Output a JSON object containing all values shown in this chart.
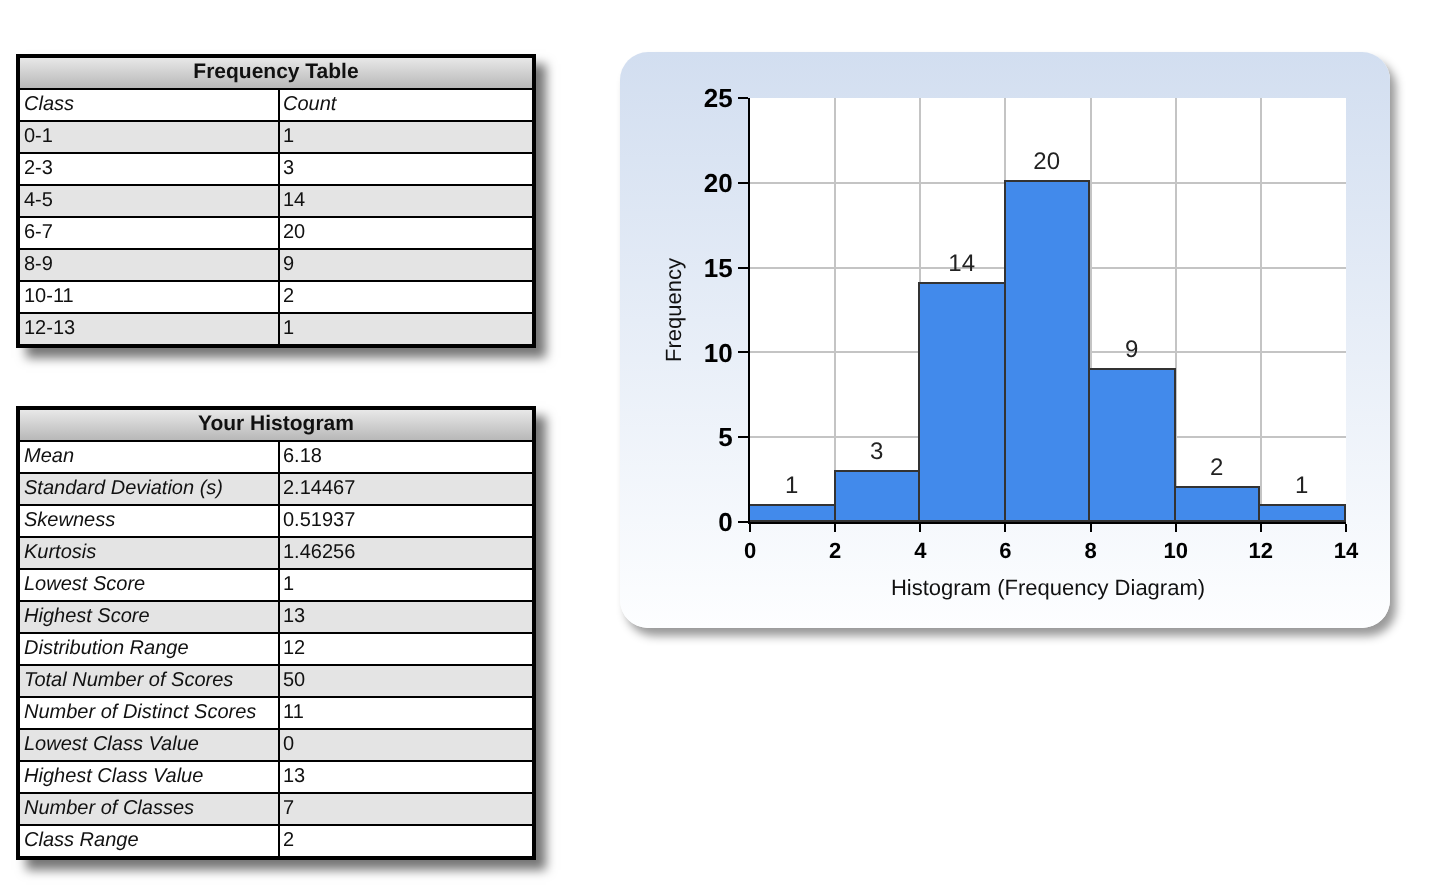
{
  "chart_data": [
    {
      "type": "other",
      "title": "Frequency Table",
      "xlabel": "Class",
      "ylabel": "Count",
      "categories": [
        "0-1",
        "2-3",
        "4-5",
        "6-7",
        "8-9",
        "10-11",
        "12-13"
      ],
      "values": [
        1,
        3,
        14,
        20,
        9,
        2,
        1
      ],
      "data_labels": true
    },
    {
      "type": "histogram",
      "bins": [
        0,
        2,
        4,
        6,
        8,
        10,
        12,
        14
      ],
      "values": [
        1,
        3,
        14,
        20,
        9,
        2,
        1
      ],
      "color": "#428aeb",
      "xlabel": "Histogram (Frequency Diagram)",
      "ylabel": "Frequency",
      "xlim": [
        0,
        14
      ],
      "xticks": [
        0,
        2,
        4,
        6,
        8,
        10,
        12,
        14
      ],
      "ylim": [
        0,
        25
      ],
      "yticks": [
        0,
        5,
        10,
        15,
        20,
        25
      ],
      "grid": true,
      "data_labels": true
    },
    {
      "type": "other",
      "title": "Your Histogram",
      "categories": [
        "Mean",
        "Standard Deviation (s)",
        "Skewness",
        "Kurtosis",
        "Lowest Score",
        "Highest Score",
        "Distribution Range",
        "Total Number of Scores",
        "Number of Distinct Scores",
        "Lowest Class Value",
        "Highest Class Value",
        "Number of Classes",
        "Class Range"
      ],
      "values": [
        6.18,
        2.14467,
        0.51937,
        1.46256,
        1,
        13,
        12,
        50,
        11,
        0,
        13,
        7,
        2
      ],
      "data_labels": true
    }
  ]
}
